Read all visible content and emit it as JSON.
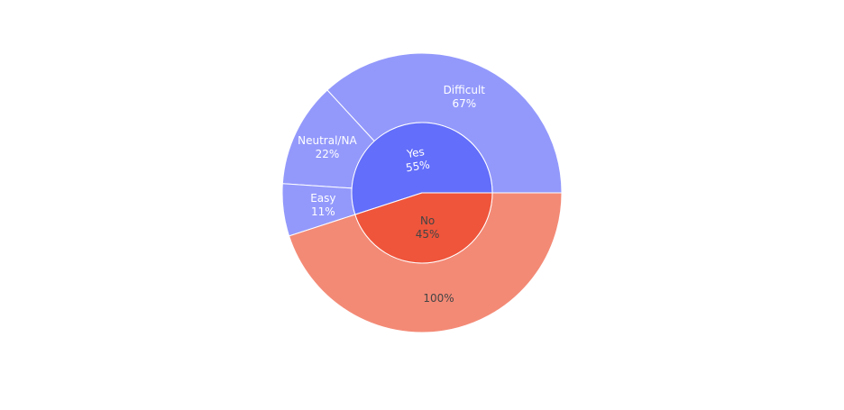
{
  "chart_data": {
    "type": "sunburst",
    "title": "",
    "rings": [
      {
        "level": "inner",
        "segments": [
          {
            "label": "Yes",
            "percent": "55%",
            "value": 0.55,
            "color": "#636efa",
            "text_color": "#ffffff"
          },
          {
            "label": "No",
            "percent": "45%",
            "value": 0.45,
            "color": "#ef553b",
            "text_color": "#444444"
          }
        ]
      },
      {
        "level": "outer",
        "segments": [
          {
            "parent": "Yes",
            "label": "Difficult",
            "percent": "67%",
            "value": 0.67,
            "color": "#9399fb",
            "text_color": "#ffffff"
          },
          {
            "parent": "Yes",
            "label": "Neutral/NA",
            "percent": "22%",
            "value": 0.22,
            "color": "#9399fb",
            "text_color": "#ffffff"
          },
          {
            "parent": "Yes",
            "label": "Easy",
            "percent": "11%",
            "value": 0.11,
            "color": "#9399fb",
            "text_color": "#ffffff"
          },
          {
            "parent": "No",
            "label": "",
            "percent": "100%",
            "value": 1.0,
            "color": "#f38a76",
            "text_color": "#444444"
          }
        ]
      }
    ]
  }
}
